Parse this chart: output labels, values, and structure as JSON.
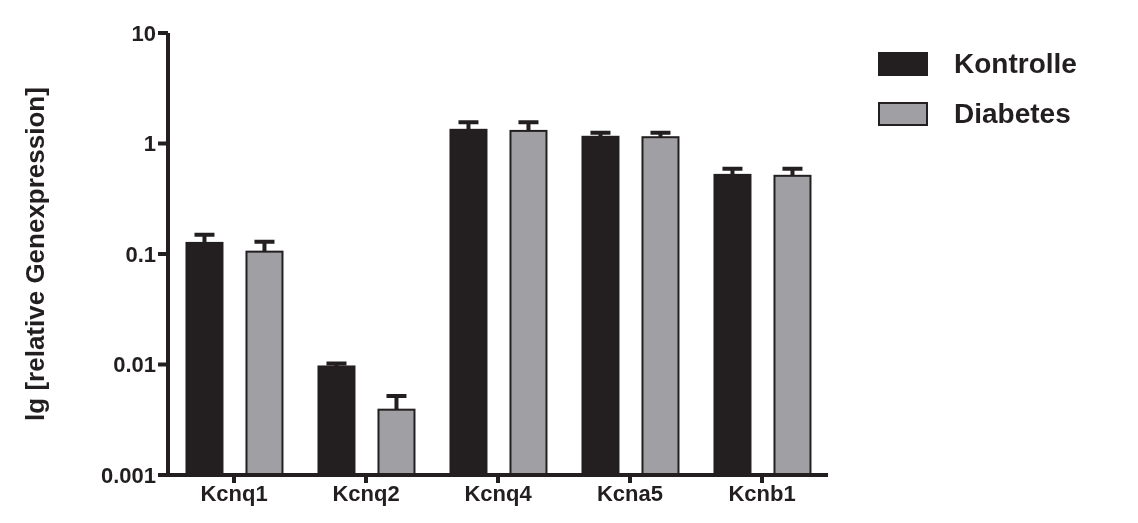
{
  "chart_data": {
    "type": "bar",
    "ylabel": "lg [relative Genexpression]",
    "categories": [
      "Kcnq1",
      "Kcnq2",
      "Kcnq4",
      "Kcna5",
      "Kcnb1"
    ],
    "series": [
      {
        "name": "Kontrolle",
        "color": "#231f20",
        "values": [
          0.126,
          0.0096,
          1.33,
          1.15,
          0.52
        ],
        "errors": [
          [
            0.126,
            0.149
          ],
          [
            0.0096,
            0.0102
          ],
          [
            1.33,
            1.56
          ],
          [
            1.15,
            1.25
          ],
          [
            0.52,
            0.59
          ]
        ]
      },
      {
        "name": "Diabetes",
        "color": "#a0a0a4",
        "values": [
          0.105,
          0.0039,
          1.3,
          1.14,
          0.51
        ],
        "errors": [
          [
            0.105,
            0.129
          ],
          [
            0.0039,
            0.0052
          ],
          [
            1.3,
            1.56
          ],
          [
            1.14,
            1.25
          ],
          [
            0.51,
            0.59
          ]
        ]
      }
    ],
    "log": "y",
    "ylim": [
      0.001,
      10
    ],
    "yticks": [
      0.001,
      0.01,
      0.1,
      1,
      10
    ],
    "grid": false,
    "legend": "top right"
  }
}
